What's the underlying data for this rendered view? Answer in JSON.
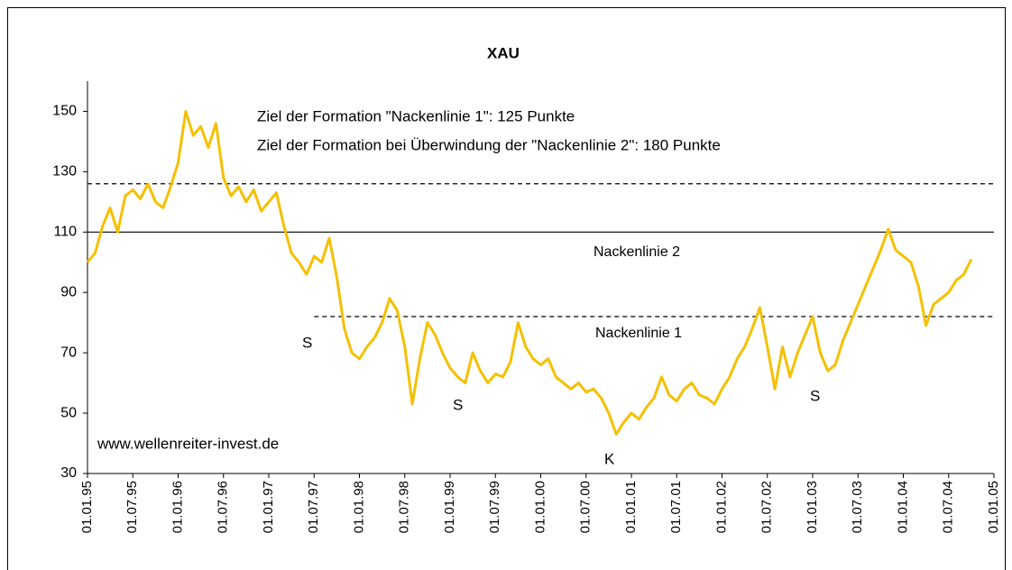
{
  "chart_data": {
    "type": "line",
    "title": "XAU",
    "color": "#f5c000",
    "ylim": [
      30,
      160
    ],
    "yticks": [
      30,
      50,
      70,
      90,
      110,
      130,
      150
    ],
    "xlim": [
      "01.01.95",
      "01.01.05"
    ],
    "xticks": [
      "01.01.95",
      "01.07.95",
      "01.01.96",
      "01.07.96",
      "01.01.97",
      "01.07.97",
      "01.01.98",
      "01.07.98",
      "01.01.99",
      "01.07.99",
      "01.01.00",
      "01.07.00",
      "01.01.01",
      "01.07.01",
      "01.01.02",
      "01.07.02",
      "01.01.03",
      "01.07.03",
      "01.01.04",
      "01.07.04",
      "01.01.05"
    ],
    "x": [
      "01.01.95",
      "01.02.95",
      "01.03.95",
      "01.04.95",
      "01.05.95",
      "01.06.95",
      "01.07.95",
      "01.08.95",
      "01.09.95",
      "01.10.95",
      "01.11.95",
      "01.12.95",
      "01.01.96",
      "01.02.96",
      "01.03.96",
      "01.04.96",
      "01.05.96",
      "01.06.96",
      "01.07.96",
      "01.08.96",
      "01.09.96",
      "01.10.96",
      "01.11.96",
      "01.12.96",
      "01.01.97",
      "01.02.97",
      "01.03.97",
      "01.04.97",
      "01.05.97",
      "01.06.97",
      "01.07.97",
      "01.08.97",
      "01.09.97",
      "01.10.97",
      "01.11.97",
      "01.12.97",
      "01.01.98",
      "01.02.98",
      "01.03.98",
      "01.04.98",
      "01.05.98",
      "01.06.98",
      "01.07.98",
      "01.08.98",
      "01.09.98",
      "01.10.98",
      "01.11.98",
      "01.12.98",
      "01.01.99",
      "01.02.99",
      "01.03.99",
      "01.04.99",
      "01.05.99",
      "01.06.99",
      "01.07.99",
      "01.08.99",
      "01.09.99",
      "01.10.99",
      "01.11.99",
      "01.12.99",
      "01.01.00",
      "01.02.00",
      "01.03.00",
      "01.04.00",
      "01.05.00",
      "01.06.00",
      "01.07.00",
      "01.08.00",
      "01.09.00",
      "01.10.00",
      "01.11.00",
      "01.12.00",
      "01.01.01",
      "01.02.01",
      "01.03.01",
      "01.04.01",
      "01.05.01",
      "01.06.01",
      "01.07.01",
      "01.08.01",
      "01.09.01",
      "01.10.01",
      "01.11.01",
      "01.12.01",
      "01.01.02",
      "01.02.02",
      "01.03.02",
      "01.04.02",
      "01.05.02",
      "01.06.02",
      "01.07.02",
      "01.08.02",
      "01.09.02",
      "01.10.02",
      "01.11.02",
      "01.12.02",
      "01.01.03",
      "01.02.03",
      "01.03.03",
      "01.04.03",
      "01.05.03",
      "01.06.03",
      "01.07.03",
      "01.08.03",
      "01.09.03",
      "01.10.03",
      "01.11.03",
      "01.12.03",
      "01.01.04",
      "01.02.04",
      "01.03.04",
      "01.04.04",
      "01.05.04",
      "01.06.04",
      "01.07.04",
      "01.08.04",
      "01.09.04",
      "01.10.04"
    ],
    "values": [
      100,
      103,
      112,
      118,
      110,
      122,
      124,
      121,
      126,
      120,
      118,
      125,
      133,
      150,
      142,
      145,
      138,
      146,
      128,
      122,
      125,
      120,
      124,
      117,
      120,
      123,
      112,
      103,
      100,
      96,
      102,
      100,
      108,
      95,
      78,
      70,
      68,
      72,
      75,
      80,
      88,
      84,
      72,
      53,
      68,
      80,
      76,
      70,
      65,
      62,
      60,
      70,
      64,
      60,
      63,
      62,
      67,
      80,
      72,
      68,
      66,
      68,
      62,
      60,
      58,
      60,
      57,
      58,
      55,
      50,
      43,
      47,
      50,
      48,
      52,
      55,
      62,
      56,
      54,
      58,
      60,
      56,
      55,
      53,
      58,
      62,
      68,
      72,
      78,
      85,
      72,
      58,
      72,
      62,
      70,
      76,
      82,
      70,
      64,
      66,
      74,
      80,
      86,
      92,
      98,
      104,
      111,
      104,
      102,
      100,
      92,
      79,
      86,
      88,
      90,
      94,
      96,
      101
    ],
    "reference_lines": [
      {
        "value": 126,
        "style": "dashed"
      },
      {
        "value": 110,
        "style": "solid",
        "label": "Nackenlinie 2"
      },
      {
        "value": 82,
        "style": "dashed",
        "from": "01.07.97",
        "label": "Nackenlinie 1"
      }
    ],
    "annotations": [
      {
        "text": "Ziel der Formation \"Nackenlinie 1\": 125 Punkte"
      },
      {
        "text": "Ziel der Formation bei Überwindung der \"Nackenlinie 2\": 180 Punkte"
      },
      {
        "text": "S"
      },
      {
        "text": "S"
      },
      {
        "text": "S"
      },
      {
        "text": "K"
      },
      {
        "text": "www.wellenreiter-invest.de"
      }
    ]
  }
}
